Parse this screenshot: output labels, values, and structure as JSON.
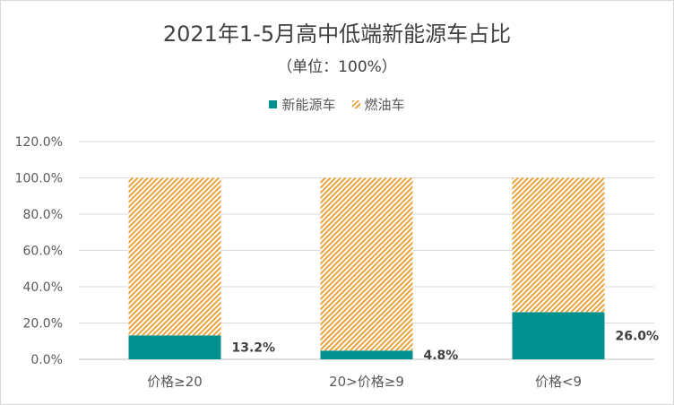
{
  "chart_data": {
    "type": "bar",
    "stacked": true,
    "title": "2021年1-5月高中低端新能源车占比",
    "subtitle": "（单位：100%）",
    "categories": [
      "价格≥20",
      "20>价格≥9",
      "价格<9"
    ],
    "series": [
      {
        "name": "新能源车",
        "values": [
          13.2,
          4.8,
          26.0
        ],
        "color": "#00918f",
        "pattern": "solid"
      },
      {
        "name": "燃油车",
        "values": [
          86.8,
          95.2,
          74.0
        ],
        "color": "#e8a33c",
        "pattern": "hatch"
      }
    ],
    "data_labels": [
      "13.2%",
      "4.8%",
      "26.0%"
    ],
    "y_ticks": [
      "0.0%",
      "20.0%",
      "40.0%",
      "60.0%",
      "80.0%",
      "100.0%",
      "120.0%"
    ],
    "ylim": [
      0,
      120
    ],
    "grid": true,
    "legend_position": "top"
  }
}
